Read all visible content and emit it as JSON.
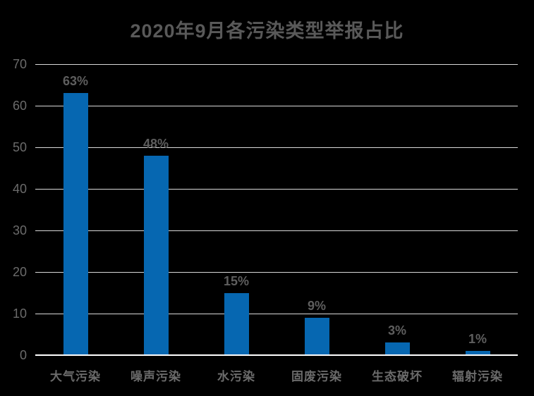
{
  "chart_data": {
    "type": "bar",
    "title": "2020年9月各污染类型举报占比",
    "categories": [
      "大气污染",
      "噪声污染",
      "水污染",
      "固废污染",
      "生态破坏",
      "辐射污染"
    ],
    "values": [
      63,
      48,
      15,
      9,
      3,
      1
    ],
    "value_labels": [
      "63%",
      "48%",
      "15%",
      "9%",
      "3%",
      "1%"
    ],
    "y_ticks": [
      0,
      10,
      20,
      30,
      40,
      50,
      60,
      70
    ],
    "ylim": [
      0,
      70
    ],
    "xlabel": "",
    "ylabel": "",
    "grid": true,
    "legend_position": "none",
    "colors": {
      "background": "#000000",
      "bar": "#0667B1",
      "title_text": "#595959",
      "axis_text": "#6B6B6B",
      "value_text": "#5E5E5E",
      "gridline": "#D9D9D9",
      "axis_line": "#FFFFFF"
    }
  }
}
